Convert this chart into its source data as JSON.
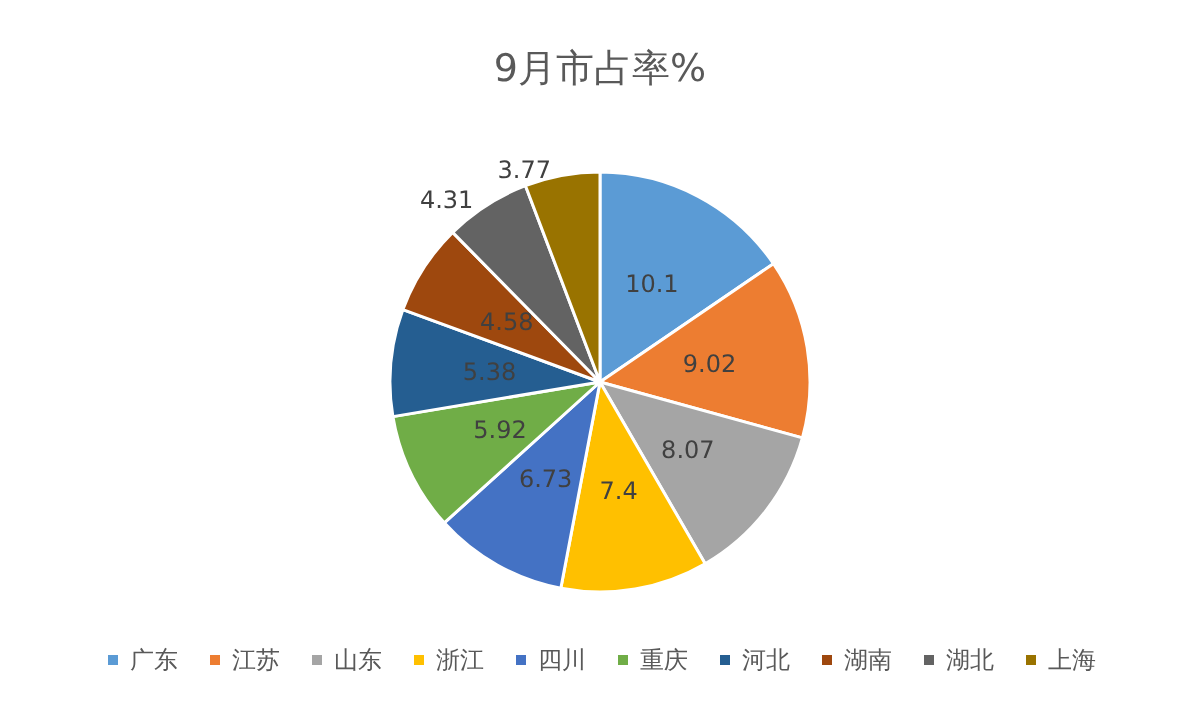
{
  "chart_data": {
    "type": "pie",
    "title": "9月市占率%",
    "categories": [
      "广东",
      "江苏",
      "山东",
      "浙江",
      "四川",
      "重庆",
      "河北",
      "湖南",
      "湖北",
      "上海"
    ],
    "values": [
      10.1,
      9.02,
      8.07,
      7.4,
      6.73,
      5.92,
      5.38,
      4.58,
      4.31,
      3.77
    ],
    "colors": [
      "#5b9bd5",
      "#ed7d31",
      "#a5a5a5",
      "#ffc000",
      "#4472c4",
      "#70ad47",
      "#255e91",
      "#9e480e",
      "#636363",
      "#997300"
    ],
    "data_labels": true,
    "legend": "bottom"
  }
}
